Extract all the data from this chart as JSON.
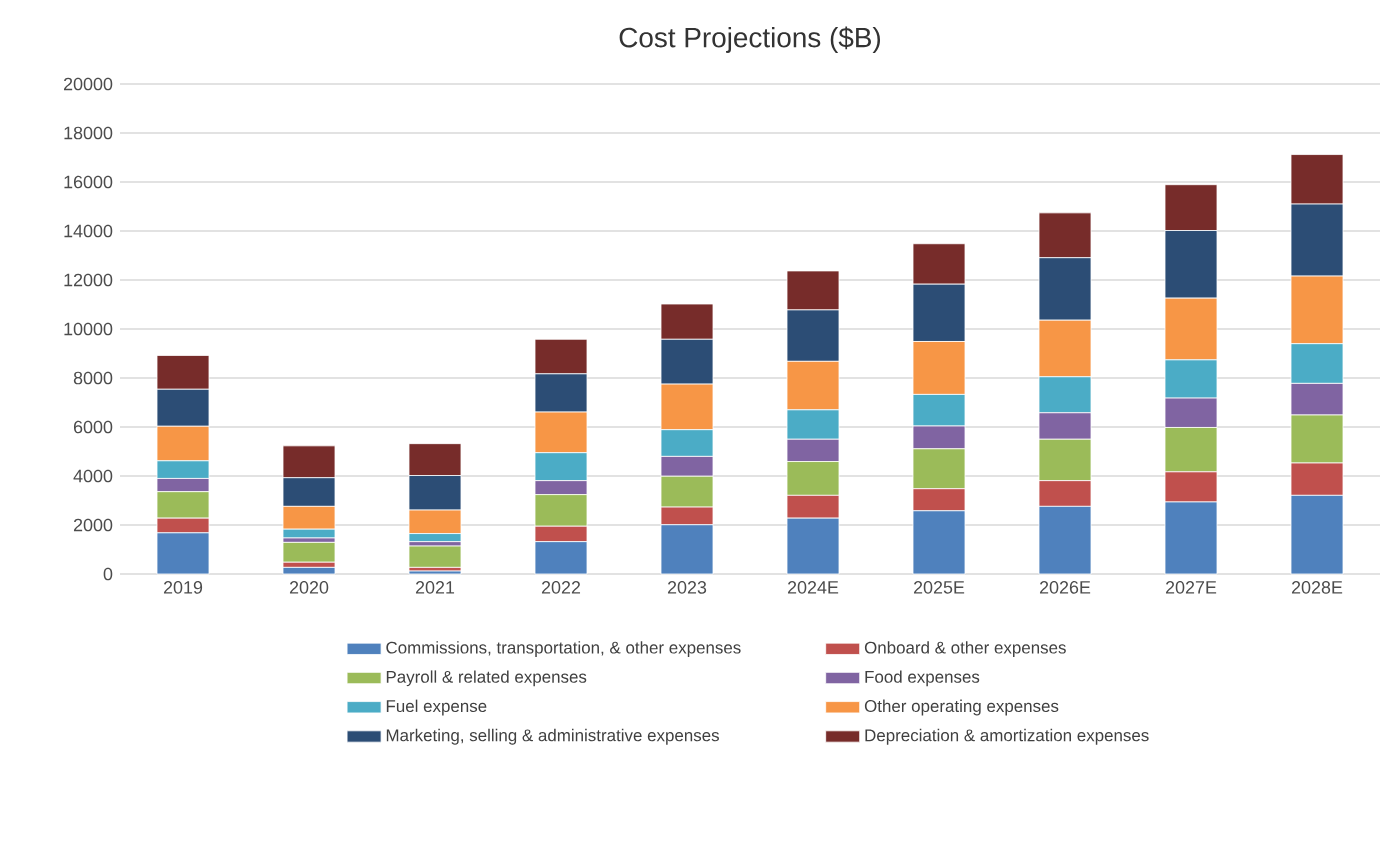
{
  "chart_data": {
    "type": "bar",
    "title": "Cost Projections ($B)",
    "stacked": true,
    "grid": "y",
    "legend": "bottom",
    "categories": [
      "2019",
      "2020",
      "2021",
      "2022",
      "2023",
      "2024E",
      "2025E",
      "2026E",
      "2027E",
      "2028E"
    ],
    "ylim": [
      0,
      20000
    ],
    "yticks": [
      0,
      2000,
      4000,
      6000,
      8000,
      10000,
      12000,
      14000,
      16000,
      18000,
      20000
    ],
    "series": [
      {
        "name": "Commissions, transportation, & other expenses",
        "color": "#4f81bd",
        "values": [
          1680,
          270,
          120,
          1320,
          2010,
          2280,
          2580,
          2760,
          2940,
          3210
        ]
      },
      {
        "name": "Onboard & other expenses",
        "color": "#c0504d",
        "values": [
          600,
          210,
          150,
          630,
          720,
          930,
          900,
          1050,
          1230,
          1320
        ]
      },
      {
        "name": "Payroll & related expenses",
        "color": "#9bbb59",
        "values": [
          1080,
          810,
          870,
          1290,
          1260,
          1380,
          1630,
          1690,
          1810,
          1960
        ]
      },
      {
        "name": "Food expenses",
        "color": "#8064a2",
        "values": [
          540,
          180,
          180,
          570,
          810,
          910,
          930,
          1080,
          1200,
          1290
        ]
      },
      {
        "name": "Fuel expense",
        "color": "#4bacc6",
        "values": [
          720,
          360,
          330,
          1140,
          1090,
          1200,
          1290,
          1470,
          1560,
          1620
        ]
      },
      {
        "name": "Other operating expenses",
        "color": "#f79646",
        "values": [
          1410,
          930,
          960,
          1660,
          1860,
          1980,
          2160,
          2310,
          2520,
          2760
        ]
      },
      {
        "name": "Marketing, selling & administrative expenses",
        "color": "#2c4d75",
        "values": [
          1510,
          1170,
          1410,
          1560,
          1830,
          2100,
          2340,
          2550,
          2760,
          2940
        ]
      },
      {
        "name": "Depreciation & amortization expenses",
        "color": "#772c2a",
        "values": [
          1380,
          1300,
          1300,
          1410,
          1440,
          1590,
          1650,
          1830,
          1870,
          2020
        ]
      }
    ]
  }
}
